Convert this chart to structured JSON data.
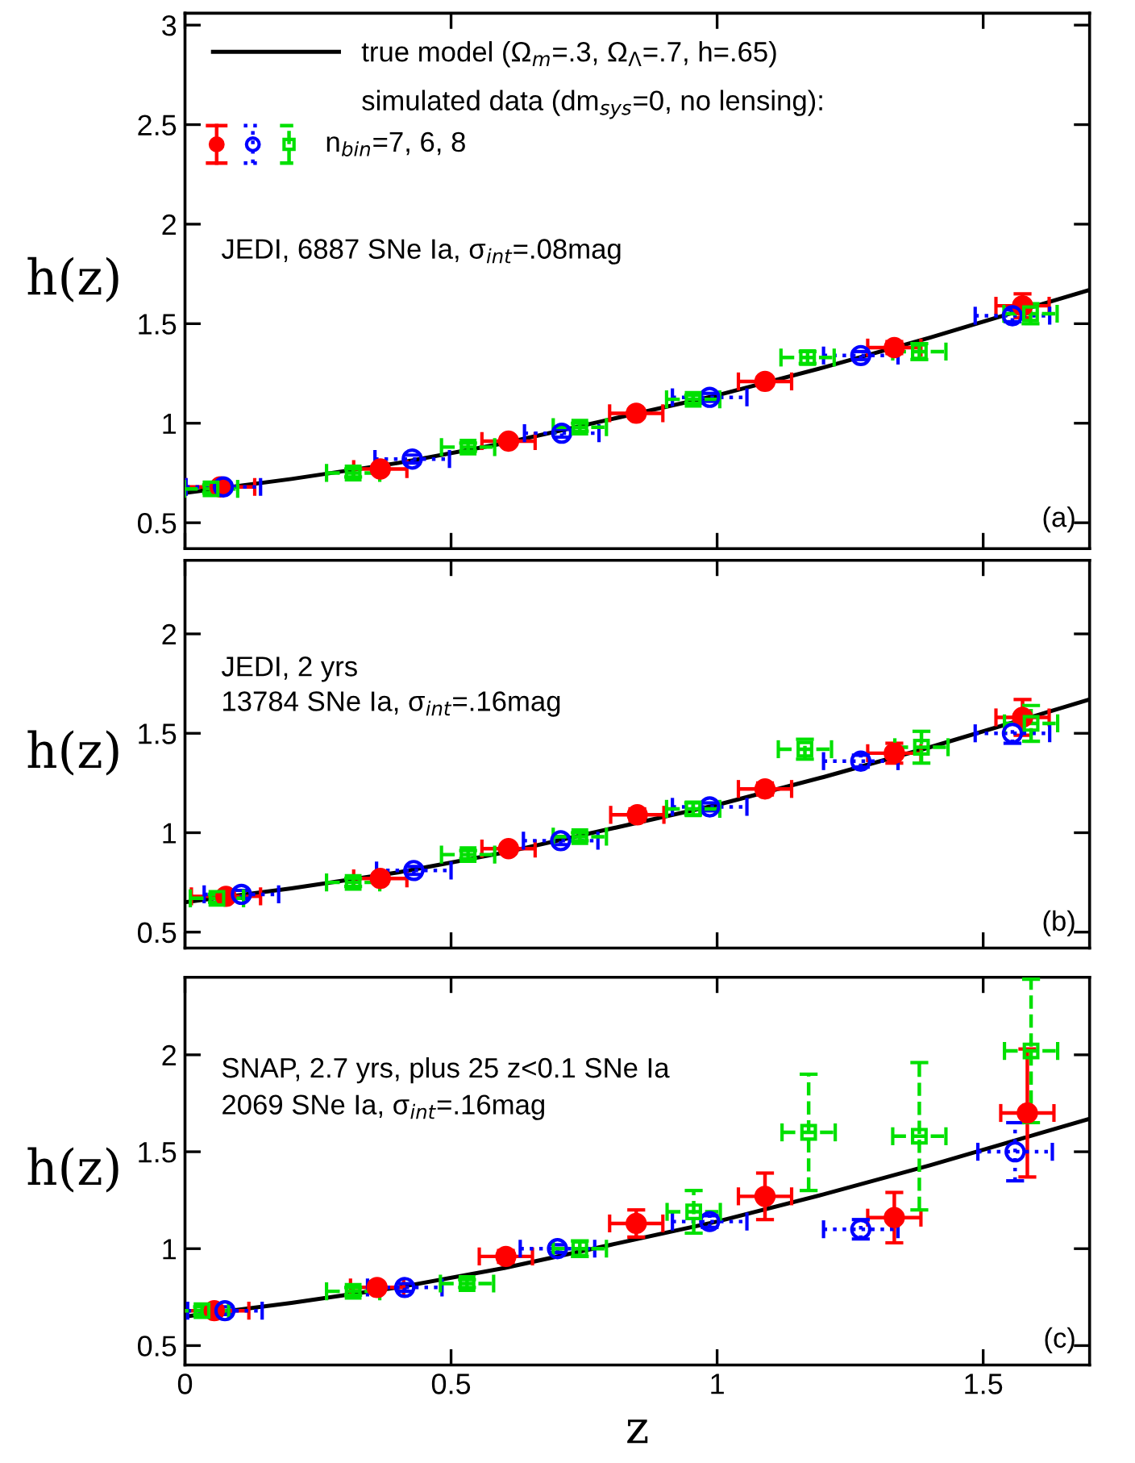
{
  "chart_data": [
    {
      "type": "scatter",
      "ylabel": "h(z)",
      "xlim": [
        0,
        1.7
      ],
      "ylim": [
        0.37,
        3.06
      ],
      "xticks": [
        0,
        0.5,
        1,
        1.5
      ],
      "yticks": [
        0.5,
        1,
        1.5,
        2,
        2.5,
        3
      ],
      "tick_labels": "y",
      "legend": "top left",
      "grid": false,
      "annotations": [
        "simulated data (dm$_{sys}$=0, no lensing):",
        "n$_{bin}$=7, 6, 8",
        "JEDI, 6887 SNe Ia, σ$_{int}$=.08mag",
        "(a)"
      ],
      "series": [
        {
          "name": "true model (Ω$_{m}$=.3, Ω$_{Λ}$=.7, h=.65)",
          "type": "line",
          "color": "#000000",
          "line_style": "solid",
          "marker": "none",
          "x": [
            0,
            0.2,
            0.4,
            0.6,
            0.8,
            1.0,
            1.2,
            1.4,
            1.6,
            1.7
          ],
          "values": [
            0.65,
            0.72,
            0.8,
            0.9,
            1.02,
            1.14,
            1.28,
            1.43,
            1.59,
            1.67
          ]
        },
        {
          "color": "#ff0000",
          "marker": "circle",
          "line_style": "solid",
          "x": [
            0.066,
            0.367,
            0.608,
            0.848,
            1.09,
            1.333,
            1.574
          ],
          "values": [
            0.68,
            0.77,
            0.91,
            1.05,
            1.21,
            1.38,
            1.59
          ],
          "errors": [
            0.02,
            0.02,
            0.02,
            0.02,
            0.02,
            0.03,
            0.06
          ],
          "xerrors": [
            0.065,
            0.05,
            0.05,
            0.05,
            0.05,
            0.05,
            0.05
          ]
        },
        {
          "color": "#0000ff",
          "marker": "circle",
          "line_style": "dotted",
          "x": [
            0.072,
            0.427,
            0.708,
            0.986,
            1.27,
            1.555
          ],
          "values": [
            0.68,
            0.82,
            0.95,
            1.13,
            1.34,
            1.54
          ],
          "errors": [
            0.02,
            0.02,
            0.02,
            0.02,
            0.02,
            0.03
          ],
          "xerrors": [
            0.07,
            0.07,
            0.07,
            0.07,
            0.07,
            0.07
          ]
        },
        {
          "color": "#00e000",
          "marker": "square",
          "line_style": "dashed",
          "x": [
            0.049,
            0.316,
            0.532,
            0.742,
            0.955,
            1.17,
            1.38,
            1.589
          ],
          "values": [
            0.67,
            0.75,
            0.88,
            0.98,
            1.12,
            1.33,
            1.36,
            1.55
          ],
          "errors": [
            0.02,
            0.02,
            0.02,
            0.02,
            0.02,
            0.03,
            0.04,
            0.05
          ],
          "xerrors": [
            0.05,
            0.05,
            0.05,
            0.05,
            0.05,
            0.05,
            0.05,
            0.05
          ]
        }
      ]
    },
    {
      "type": "scatter",
      "ylabel": "h(z)",
      "xlim": [
        0,
        1.7
      ],
      "ylim": [
        0.42,
        2.37
      ],
      "xticks": [
        0,
        0.5,
        1,
        1.5
      ],
      "yticks": [
        0.5,
        1,
        1.5,
        2
      ],
      "tick_labels": "y",
      "grid": false,
      "annotations": [
        "JEDI, 2 yrs",
        "13784 SNe Ia, σ$_{int}$=.16mag",
        "(b)"
      ],
      "series": [
        {
          "type": "line",
          "color": "#000000",
          "line_style": "solid",
          "marker": "none",
          "x": [
            0,
            0.2,
            0.4,
            0.6,
            0.8,
            1.0,
            1.2,
            1.4,
            1.6,
            1.7
          ],
          "values": [
            0.65,
            0.72,
            0.8,
            0.9,
            1.02,
            1.14,
            1.28,
            1.43,
            1.59,
            1.67
          ]
        },
        {
          "color": "#ff0000",
          "marker": "circle",
          "line_style": "solid",
          "x": [
            0.077,
            0.367,
            0.608,
            0.85,
            1.09,
            1.333,
            1.574
          ],
          "values": [
            0.68,
            0.77,
            0.92,
            1.09,
            1.22,
            1.4,
            1.58
          ],
          "errors": [
            0.02,
            0.02,
            0.02,
            0.03,
            0.03,
            0.05,
            0.09
          ],
          "xerrors": [
            0.065,
            0.05,
            0.05,
            0.05,
            0.05,
            0.05,
            0.05
          ]
        },
        {
          "color": "#0000ff",
          "marker": "circle",
          "line_style": "dotted",
          "x": [
            0.106,
            0.43,
            0.706,
            0.986,
            1.27,
            1.555
          ],
          "values": [
            0.69,
            0.81,
            0.96,
            1.13,
            1.36,
            1.5
          ],
          "errors": [
            0.02,
            0.02,
            0.02,
            0.02,
            0.03,
            0.05
          ],
          "xerrors": [
            0.07,
            0.07,
            0.07,
            0.07,
            0.07,
            0.07
          ]
        },
        {
          "color": "#00e000",
          "marker": "square",
          "line_style": "dashed",
          "x": [
            0.06,
            0.316,
            0.532,
            0.742,
            0.955,
            1.165,
            1.384,
            1.59
          ],
          "values": [
            0.67,
            0.75,
            0.89,
            0.98,
            1.12,
            1.42,
            1.43,
            1.55
          ],
          "errors": [
            0.02,
            0.02,
            0.02,
            0.02,
            0.03,
            0.05,
            0.08,
            0.09
          ],
          "xerrors": [
            0.05,
            0.05,
            0.05,
            0.05,
            0.05,
            0.05,
            0.05,
            0.05
          ]
        }
      ]
    },
    {
      "type": "scatter",
      "xlabel": "z",
      "ylabel": "h(z)",
      "xlim": [
        0,
        1.7
      ],
      "ylim": [
        0.4,
        2.4
      ],
      "xticks": [
        0,
        0.5,
        1,
        1.5
      ],
      "yticks": [
        0.5,
        1,
        1.5,
        2
      ],
      "grid": false,
      "annotations": [
        "SNAP, 2.7 yrs, plus 25 z<0.1 SNe Ia",
        "2069 SNe Ia, σ$_{int}$=.16mag",
        "(c)"
      ],
      "series": [
        {
          "type": "line",
          "color": "#000000",
          "line_style": "solid",
          "marker": "none",
          "x": [
            0,
            0.2,
            0.4,
            0.6,
            0.8,
            1.0,
            1.2,
            1.4,
            1.6,
            1.7
          ],
          "values": [
            0.65,
            0.72,
            0.8,
            0.9,
            1.02,
            1.14,
            1.28,
            1.43,
            1.59,
            1.67
          ]
        },
        {
          "color": "#ff0000",
          "marker": "circle",
          "line_style": "solid",
          "x": [
            0.055,
            0.361,
            0.603,
            0.848,
            1.09,
            1.333,
            1.583
          ],
          "values": [
            0.68,
            0.8,
            0.96,
            1.13,
            1.27,
            1.16,
            1.7
          ],
          "errors": [
            0.02,
            0.02,
            0.03,
            0.07,
            0.12,
            0.13,
            0.33
          ],
          "xerrors": [
            0.065,
            0.05,
            0.05,
            0.05,
            0.05,
            0.05,
            0.05
          ]
        },
        {
          "color": "#0000ff",
          "marker": "circle",
          "line_style": "dotted",
          "x": [
            0.075,
            0.413,
            0.7,
            0.986,
            1.27,
            1.56
          ],
          "values": [
            0.68,
            0.8,
            1.0,
            1.14,
            1.1,
            1.5
          ],
          "errors": [
            0.02,
            0.02,
            0.02,
            0.03,
            0.05,
            0.15
          ],
          "xerrors": [
            0.07,
            0.07,
            0.07,
            0.07,
            0.07,
            0.07
          ]
        },
        {
          "color": "#00e000",
          "marker": "square",
          "line_style": "dashed",
          "x": [
            0.032,
            0.316,
            0.53,
            0.742,
            0.956,
            1.172,
            1.38,
            1.59
          ],
          "values": [
            0.68,
            0.78,
            0.82,
            1.0,
            1.19,
            1.6,
            1.58,
            2.02
          ],
          "errors": [
            0.02,
            0.02,
            0.02,
            0.04,
            0.11,
            0.3,
            0.38,
            0.37
          ],
          "xerrors": [
            0.05,
            0.05,
            0.05,
            0.05,
            0.05,
            0.05,
            0.05,
            0.05
          ]
        }
      ]
    }
  ]
}
